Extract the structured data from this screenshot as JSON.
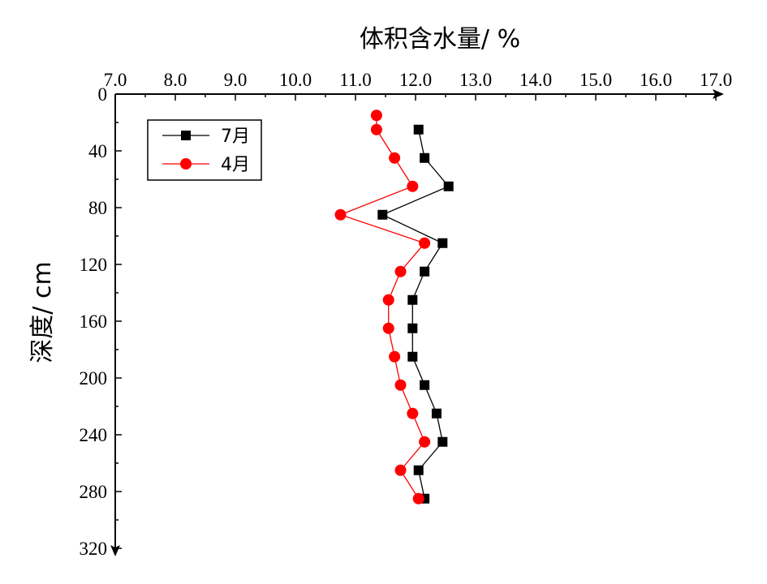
{
  "chart_data": {
    "type": "line",
    "orientation": "depth-profile",
    "xlabel": "体积含水量/ %",
    "ylabel": "深度/ cm",
    "xlim": [
      7.0,
      17.0
    ],
    "ylim": [
      0,
      320
    ],
    "x_ticks": [
      "7.0",
      "8.0",
      "9.0",
      "10.0",
      "11.0",
      "12.0",
      "13.0",
      "14.0",
      "15.0",
      "16.0",
      "17.0"
    ],
    "y_ticks": [
      "0",
      "40",
      "80",
      "120",
      "160",
      "200",
      "240",
      "280",
      "320"
    ],
    "x_axis_position": "top",
    "grid": false,
    "legend_position": "top-left",
    "series": [
      {
        "name": "7月",
        "color": "#000000",
        "marker": "square",
        "points": [
          {
            "x": 12.05,
            "y": 25
          },
          {
            "x": 12.15,
            "y": 45
          },
          {
            "x": 12.55,
            "y": 65
          },
          {
            "x": 11.45,
            "y": 85
          },
          {
            "x": 12.45,
            "y": 105
          },
          {
            "x": 12.15,
            "y": 125
          },
          {
            "x": 11.95,
            "y": 145
          },
          {
            "x": 11.95,
            "y": 165
          },
          {
            "x": 11.95,
            "y": 185
          },
          {
            "x": 12.15,
            "y": 205
          },
          {
            "x": 12.35,
            "y": 225
          },
          {
            "x": 12.45,
            "y": 245
          },
          {
            "x": 12.05,
            "y": 265
          },
          {
            "x": 12.15,
            "y": 285
          }
        ]
      },
      {
        "name": "4月",
        "color": "#ff0000",
        "marker": "circle",
        "points": [
          {
            "x": 11.35,
            "y": 15
          },
          {
            "x": 11.35,
            "y": 25
          },
          {
            "x": 11.65,
            "y": 45
          },
          {
            "x": 11.95,
            "y": 65
          },
          {
            "x": 10.75,
            "y": 85
          },
          {
            "x": 12.15,
            "y": 105
          },
          {
            "x": 11.75,
            "y": 125
          },
          {
            "x": 11.55,
            "y": 145
          },
          {
            "x": 11.55,
            "y": 165
          },
          {
            "x": 11.65,
            "y": 185
          },
          {
            "x": 11.75,
            "y": 205
          },
          {
            "x": 11.95,
            "y": 225
          },
          {
            "x": 12.15,
            "y": 245
          },
          {
            "x": 11.75,
            "y": 265
          },
          {
            "x": 12.05,
            "y": 285
          }
        ]
      }
    ]
  }
}
